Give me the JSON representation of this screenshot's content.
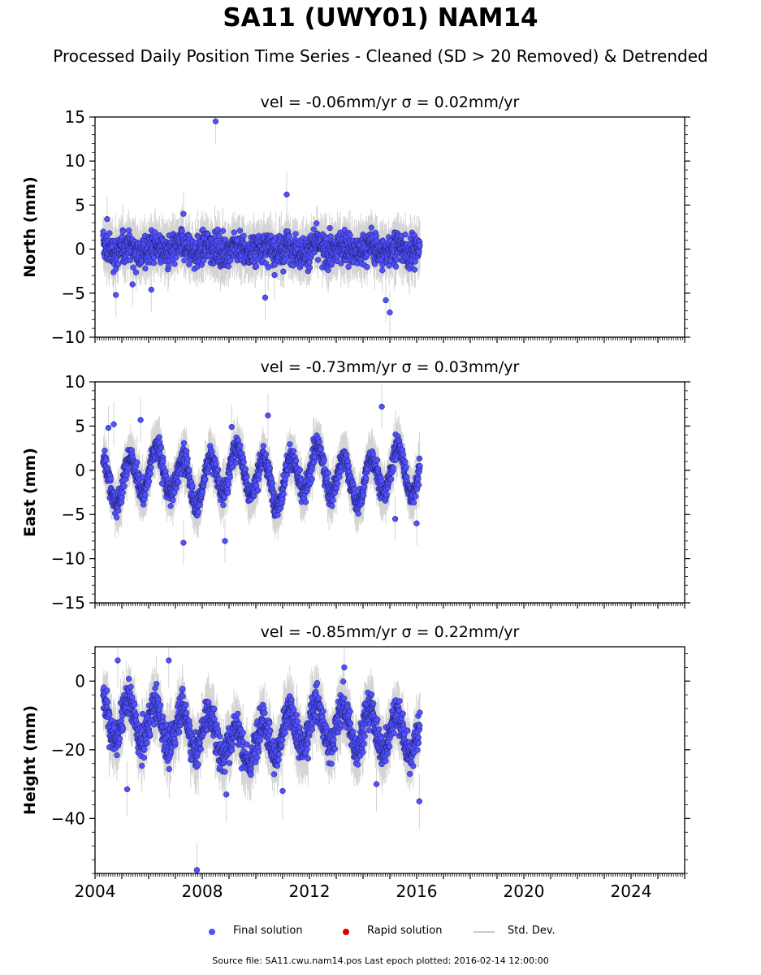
{
  "title": "SA11 (UWY01) NAM14",
  "subtitle": "Processed Daily Position Time Series - Cleaned (SD > 20 Removed) & Detrended",
  "colors": {
    "final": "#5050ff",
    "final_edge": "#1a1a60",
    "rapid": "#dd0000",
    "std": "#b0b0b0"
  },
  "legend": {
    "final": "Final solution",
    "rapid": "Rapid solution",
    "std": "Std. Dev."
  },
  "footer": "Source file: SA11.cwu.nam14.pos  Last epoch plotted: 2016-02-14 12:00:00",
  "chart_data": [
    {
      "type": "scatter",
      "panel_title": "vel = -0.06mm/yr   σ = 0.02mm/yr",
      "ylabel": "North (mm)",
      "xlim": [
        2004,
        2026
      ],
      "ylim": [
        -10,
        15
      ],
      "yticks": [
        -10,
        -5,
        0,
        5,
        10,
        15
      ],
      "xticks": [
        2004,
        2008,
        2012,
        2016,
        2020,
        2024
      ],
      "show_xticklabels": false,
      "data_range": [
        2004.3,
        2016.12
      ],
      "series": [
        {
          "values": [
            [
              2004.45,
              3.4
            ],
            [
              2004.78,
              -5.2
            ],
            [
              2005.4,
              -4.0
            ],
            [
              2006.1,
              -4.6
            ],
            [
              2007.3,
              4.0
            ],
            [
              2008.5,
              14.5
            ],
            [
              2010.35,
              -5.5
            ],
            [
              2011.15,
              6.2
            ],
            [
              2014.85,
              -5.8
            ],
            [
              2015.0,
              -7.2
            ],
            [
              2012.0,
              -1.5
            ],
            [
              2009.3,
              1.0
            ]
          ]
        }
      ]
    },
    {
      "type": "scatter",
      "panel_title": "vel = -0.73mm/yr   σ = 0.03mm/yr",
      "ylabel": "East (mm)",
      "xlim": [
        2004,
        2026
      ],
      "ylim": [
        -15,
        10
      ],
      "yticks": [
        -15,
        -10,
        -5,
        0,
        5,
        10
      ],
      "xticks": [
        2004,
        2008,
        2012,
        2016,
        2020,
        2024
      ],
      "show_xticklabels": false,
      "data_range": [
        2004.3,
        2016.12
      ],
      "series": [
        {
          "values": [
            [
              2004.5,
              4.8
            ],
            [
              2004.7,
              5.2
            ],
            [
              2005.7,
              5.7
            ],
            [
              2007.3,
              -8.2
            ],
            [
              2008.85,
              -8.0
            ],
            [
              2009.1,
              4.9
            ],
            [
              2010.45,
              6.2
            ],
            [
              2014.7,
              7.2
            ],
            [
              2015.2,
              -5.5
            ],
            [
              2016.0,
              -6.0
            ],
            [
              2012.1,
              -1.0
            ],
            [
              2006.5,
              -1.5
            ]
          ]
        }
      ]
    },
    {
      "type": "scatter",
      "panel_title": "vel = -0.85mm/yr   σ = 0.22mm/yr",
      "ylabel": "Height (mm)",
      "xlim": [
        2004,
        2026
      ],
      "ylim": [
        -56,
        10
      ],
      "yticks": [
        -40,
        -20,
        0
      ],
      "xticks": [
        2004,
        2008,
        2012,
        2016,
        2020,
        2024
      ],
      "show_xticklabels": true,
      "data_range": [
        2004.3,
        2016.12
      ],
      "series": [
        {
          "values": [
            [
              2004.85,
              6.0
            ],
            [
              2005.2,
              -31.5
            ],
            [
              2006.75,
              6.0
            ],
            [
              2007.8,
              -55.0
            ],
            [
              2008.9,
              -33.0
            ],
            [
              2013.3,
              4.0
            ],
            [
              2016.1,
              -35.0
            ],
            [
              2011.0,
              -32.0
            ],
            [
              2014.5,
              -30.0
            ],
            [
              2012.0,
              -15.0
            ]
          ]
        }
      ]
    }
  ]
}
